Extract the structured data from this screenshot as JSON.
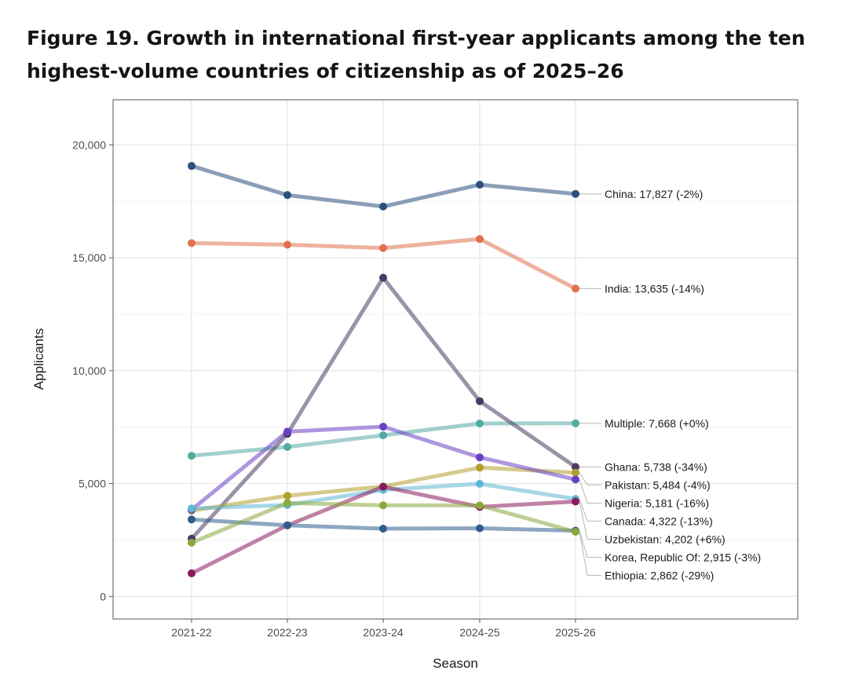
{
  "title": "Figure 19. Growth in international first-year applicants among the ten highest-volume countries of citizenship as of 2025–26",
  "chart_data": {
    "type": "line",
    "title": "Figure 19. Growth in international first-year applicants among the ten highest-volume countries of citizenship as of 2025–26",
    "xlabel": "Season",
    "ylabel": "Applicants",
    "x": [
      "2021-22",
      "2022-23",
      "2023-24",
      "2024-25",
      "2025-26"
    ],
    "ylim": [
      -1000,
      22000
    ],
    "yticks": [
      0,
      5000,
      10000,
      15000,
      20000
    ],
    "ytick_labels": [
      "0",
      "5,000",
      "10,000",
      "15,000",
      "20,000"
    ],
    "grid": true,
    "legend": "direct labels at right end of lines",
    "series": [
      {
        "name": "China",
        "label": "China: 17,827 (-2%)",
        "color": "#2c4f7c",
        "values": [
          19070,
          17780,
          17270,
          18240,
          17827
        ]
      },
      {
        "name": "India",
        "label": "India: 13,635 (-14%)",
        "color": "#e0714f",
        "values": [
          15650,
          15580,
          15430,
          15830,
          13635
        ]
      },
      {
        "name": "Multiple",
        "label": "Multiple: 7,668 (+0%)",
        "color": "#55aaa3",
        "values": [
          6230,
          6620,
          7140,
          7660,
          7668
        ]
      },
      {
        "name": "Ghana",
        "label": "Ghana: 5,738 (-34%)",
        "color": "#4a3a63",
        "values": [
          2560,
          7200,
          14120,
          8650,
          5738
        ]
      },
      {
        "name": "Pakistan",
        "label": "Pakistan: 5,484 (-4%)",
        "color": "#b0a02c",
        "values": [
          3800,
          4460,
          4870,
          5710,
          5484
        ]
      },
      {
        "name": "Nigeria",
        "label": "Nigeria: 5,181 (-16%)",
        "color": "#6a3fc4",
        "values": [
          3840,
          7300,
          7520,
          6160,
          5181
        ]
      },
      {
        "name": "Canada",
        "label": "Canada: 4,322 (-13%)",
        "color": "#5fb7d3",
        "values": [
          3900,
          4050,
          4720,
          4990,
          4322
        ]
      },
      {
        "name": "Uzbekistan",
        "label": "Uzbekistan: 4,202 (+6%)",
        "color": "#8a1a5c",
        "values": [
          1020,
          3150,
          4860,
          3970,
          4202
        ]
      },
      {
        "name": "Korea, Republic Of",
        "label": "Korea, Republic Of: 2,915 (-3%)",
        "color": "#2f5e8c",
        "values": [
          3410,
          3150,
          3000,
          3020,
          2915
        ]
      },
      {
        "name": "Ethiopia",
        "label": "Ethiopia: 2,862 (-29%)",
        "color": "#8aa83c",
        "values": [
          2380,
          4140,
          4040,
          4030,
          2862
        ]
      }
    ]
  }
}
